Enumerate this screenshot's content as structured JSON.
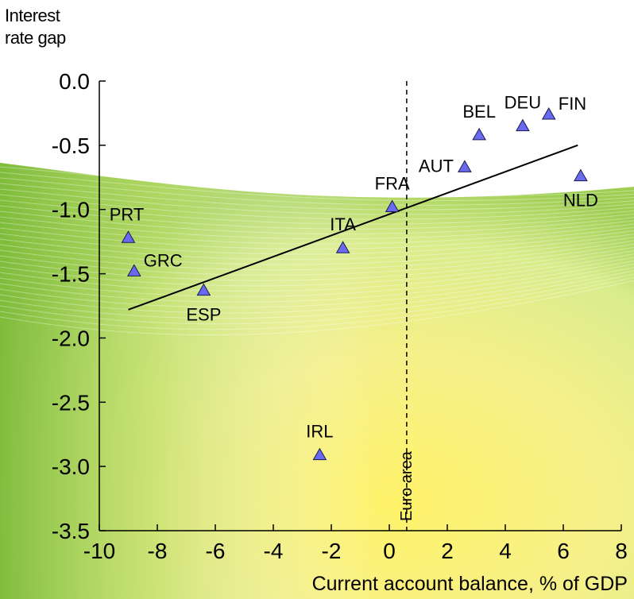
{
  "chart_data": {
    "type": "scatter",
    "ylabel": "Interest rate gap",
    "ylabel_lines": [
      "Interest",
      "rate gap"
    ],
    "xlabel": "Current account balance, % of GDP",
    "xlim": [
      -10,
      8
    ],
    "ylim": [
      -3.5,
      0.0
    ],
    "xticks": [
      -10,
      -8,
      -6,
      -4,
      -2,
      0,
      2,
      4,
      6,
      8
    ],
    "yticks": [
      0.0,
      -0.5,
      -1.0,
      -1.5,
      -2.0,
      -2.5,
      -3.0,
      -3.5
    ],
    "xtick_labels": [
      "-10",
      "-8",
      "-6",
      "-4",
      "-2",
      "0",
      "2",
      "4",
      "6",
      "8"
    ],
    "ytick_labels": [
      "0.0",
      "-0.5",
      "-1.0",
      "-1.5",
      "-2.0",
      "-2.5",
      "-3.0",
      "-3.5"
    ],
    "grid": false,
    "marker_color": "#6a6af0",
    "points": [
      {
        "label": "PRT",
        "x": -9.0,
        "y": -1.22
      },
      {
        "label": "GRC",
        "x": -8.8,
        "y": -1.48
      },
      {
        "label": "ESP",
        "x": -6.4,
        "y": -1.63
      },
      {
        "label": "IRL",
        "x": -2.4,
        "y": -2.91
      },
      {
        "label": "ITA",
        "x": -1.6,
        "y": -1.3
      },
      {
        "label": "FRA",
        "x": 0.1,
        "y": -0.98
      },
      {
        "label": "AUT",
        "x": 2.6,
        "y": -0.67
      },
      {
        "label": "BEL",
        "x": 3.1,
        "y": -0.42
      },
      {
        "label": "DEU",
        "x": 4.6,
        "y": -0.35
      },
      {
        "label": "FIN",
        "x": 5.5,
        "y": -0.26
      },
      {
        "label": "NLD",
        "x": 6.6,
        "y": -0.74
      }
    ],
    "trend_line": {
      "x": [
        -9.0,
        6.5
      ],
      "y": [
        -1.78,
        -0.5
      ]
    },
    "reference_line": {
      "x": 0.6,
      "label": "Euro area",
      "style": "dashed"
    }
  }
}
